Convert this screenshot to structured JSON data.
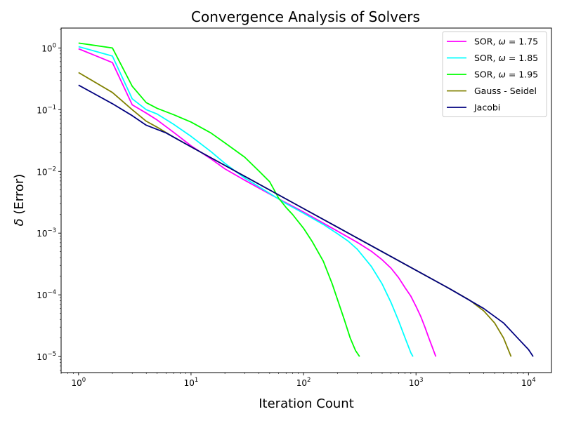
{
  "chart_data": {
    "type": "line",
    "title": "Convergence Analysis of Solvers",
    "xlabel": "Iteration Count",
    "ylabel_symbol": "δ",
    "ylabel_text": " (Error)",
    "xscale": "log",
    "yscale": "log",
    "xlim": [
      0.7,
      16000
    ],
    "ylim": [
      5.5e-06,
      2.1
    ],
    "xticks": [
      {
        "value": 1,
        "base": "10",
        "exp": "0"
      },
      {
        "value": 10,
        "base": "10",
        "exp": "1"
      },
      {
        "value": 100,
        "base": "10",
        "exp": "2"
      },
      {
        "value": 1000,
        "base": "10",
        "exp": "3"
      },
      {
        "value": 10000,
        "base": "10",
        "exp": "4"
      }
    ],
    "yticks": [
      {
        "value": 1e-05,
        "base": "10",
        "exp": "−5"
      },
      {
        "value": 0.0001,
        "base": "10",
        "exp": "−4"
      },
      {
        "value": 0.001,
        "base": "10",
        "exp": "−3"
      },
      {
        "value": 0.01,
        "base": "10",
        "exp": "−2"
      },
      {
        "value": 0.1,
        "base": "10",
        "exp": "−1"
      },
      {
        "value": 1,
        "base": "10",
        "exp": "0"
      }
    ],
    "grid": false,
    "legend_position": "top-right",
    "series": [
      {
        "name_prefix": "SOR, ",
        "name_symbol": "ω",
        "name_suffix": " = 1.75",
        "color": "#ff00ff",
        "points": [
          [
            1,
            0.97
          ],
          [
            2,
            0.58
          ],
          [
            3,
            0.12
          ],
          [
            4,
            0.088
          ],
          [
            5,
            0.068
          ],
          [
            7,
            0.043
          ],
          [
            10,
            0.026
          ],
          [
            15,
            0.016
          ],
          [
            20,
            0.011
          ],
          [
            30,
            0.0072
          ],
          [
            50,
            0.0043
          ],
          [
            70,
            0.0031
          ],
          [
            100,
            0.0022
          ],
          [
            150,
            0.00145
          ],
          [
            200,
            0.00108
          ],
          [
            300,
            0.00071
          ],
          [
            400,
            0.00051
          ],
          [
            500,
            0.00037
          ],
          [
            600,
            0.00027
          ],
          [
            700,
            0.00019
          ],
          [
            800,
            0.00013
          ],
          [
            900,
            9.5e-05
          ],
          [
            1000,
            6.5e-05
          ],
          [
            1100,
            4.5e-05
          ],
          [
            1200,
            3e-05
          ],
          [
            1300,
            2e-05
          ],
          [
            1400,
            1.4e-05
          ],
          [
            1500,
            1e-05
          ]
        ]
      },
      {
        "name_prefix": "SOR, ",
        "name_symbol": "ω",
        "name_suffix": " = 1.85",
        "color": "#00ffff",
        "points": [
          [
            1,
            1.05
          ],
          [
            2,
            0.74
          ],
          [
            3,
            0.15
          ],
          [
            4,
            0.1
          ],
          [
            5,
            0.085
          ],
          [
            7,
            0.058
          ],
          [
            10,
            0.037
          ],
          [
            15,
            0.021
          ],
          [
            20,
            0.0135
          ],
          [
            30,
            0.0078
          ],
          [
            50,
            0.0044
          ],
          [
            70,
            0.003
          ],
          [
            100,
            0.0021
          ],
          [
            150,
            0.00138
          ],
          [
            200,
            0.00098
          ],
          [
            250,
            0.00074
          ],
          [
            300,
            0.00055
          ],
          [
            400,
            0.00029
          ],
          [
            500,
            0.00015
          ],
          [
            600,
            7.5e-05
          ],
          [
            700,
            3.8e-05
          ],
          [
            800,
            2e-05
          ],
          [
            900,
            1.15e-05
          ],
          [
            940,
            1e-05
          ]
        ]
      },
      {
        "name_prefix": "SOR, ",
        "name_symbol": "ω",
        "name_suffix": " = 1.95",
        "color": "#00ff00",
        "points": [
          [
            1,
            1.2
          ],
          [
            2,
            1.0
          ],
          [
            3,
            0.24
          ],
          [
            4,
            0.13
          ],
          [
            5,
            0.105
          ],
          [
            7,
            0.083
          ],
          [
            10,
            0.063
          ],
          [
            15,
            0.042
          ],
          [
            20,
            0.029
          ],
          [
            30,
            0.017
          ],
          [
            40,
            0.0102
          ],
          [
            50,
            0.0068
          ],
          [
            60,
            0.0037
          ],
          [
            70,
            0.0026
          ],
          [
            80,
            0.002
          ],
          [
            100,
            0.0012
          ],
          [
            120,
            0.00072
          ],
          [
            150,
            0.00035
          ],
          [
            180,
            0.00015
          ],
          [
            200,
            8.5e-05
          ],
          [
            230,
            4e-05
          ],
          [
            260,
            2e-05
          ],
          [
            290,
            1.25e-05
          ],
          [
            315,
            1e-05
          ]
        ]
      },
      {
        "name_prefix": "Gauss - Seidel",
        "name_symbol": "",
        "name_suffix": "",
        "color": "#808000",
        "points": [
          [
            1,
            0.4
          ],
          [
            2,
            0.19
          ],
          [
            3,
            0.1
          ],
          [
            4,
            0.065
          ],
          [
            5,
            0.052
          ],
          [
            7,
            0.036
          ],
          [
            10,
            0.025
          ],
          [
            20,
            0.0125
          ],
          [
            50,
            0.005
          ],
          [
            100,
            0.0025
          ],
          [
            200,
            0.00125
          ],
          [
            500,
            0.0005
          ],
          [
            1000,
            0.00025
          ],
          [
            2000,
            0.000125
          ],
          [
            3000,
            8.2e-05
          ],
          [
            4000,
            5.5e-05
          ],
          [
            5000,
            3.5e-05
          ],
          [
            6000,
            2e-05
          ],
          [
            7000,
            1e-05
          ]
        ]
      },
      {
        "name_prefix": "Jacobi",
        "name_symbol": "",
        "name_suffix": "",
        "color": "#00007f",
        "points": [
          [
            1,
            0.25
          ],
          [
            2,
            0.125
          ],
          [
            3,
            0.08
          ],
          [
            4,
            0.056
          ],
          [
            6,
            0.042
          ],
          [
            10,
            0.025
          ],
          [
            20,
            0.0125
          ],
          [
            50,
            0.005
          ],
          [
            100,
            0.0025
          ],
          [
            200,
            0.00125
          ],
          [
            500,
            0.0005
          ],
          [
            1000,
            0.00025
          ],
          [
            2000,
            0.000125
          ],
          [
            4000,
            6e-05
          ],
          [
            6000,
            3.5e-05
          ],
          [
            8000,
            2e-05
          ],
          [
            10000,
            1.3e-05
          ],
          [
            11000,
            1e-05
          ]
        ]
      }
    ]
  }
}
